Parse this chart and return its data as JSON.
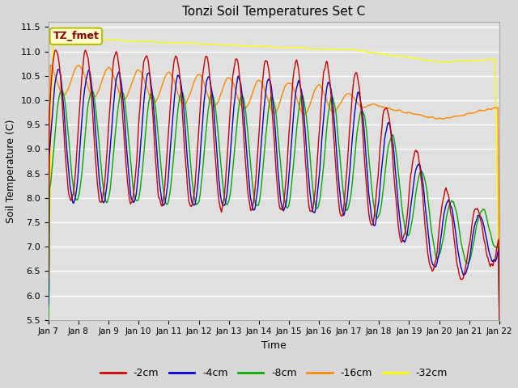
{
  "title": "Tonzi Soil Temperatures Set C",
  "xlabel": "Time",
  "ylabel": "Soil Temperature (C)",
  "ylim": [
    5.5,
    11.6
  ],
  "yticks": [
    5.5,
    6.0,
    6.5,
    7.0,
    7.5,
    8.0,
    8.5,
    9.0,
    9.5,
    10.0,
    10.5,
    11.0,
    11.5
  ],
  "xtick_labels": [
    "Jan 7",
    "Jan 8",
    "Jan 9",
    "Jan 10",
    "Jan 11",
    "Jan 12",
    "Jan 13",
    "Jan 14",
    "Jan 15",
    "Jan 16",
    "Jan 17",
    "Jan 18",
    "Jan 19",
    "Jan 20",
    "Jan 21",
    "Jan 22"
  ],
  "colors": {
    "-2cm": "#cc0000",
    "-4cm": "#0000cc",
    "-8cm": "#00aa00",
    "-16cm": "#ff8800",
    "-32cm": "#ffff00"
  },
  "legend_labels": [
    "-2cm",
    "-4cm",
    "-8cm",
    "-16cm",
    "-32cm"
  ],
  "annotation_text": "TZ_fmet",
  "annotation_bg": "#ffffcc",
  "annotation_border": "#bbbb00",
  "annotation_text_color": "#880000",
  "fig_bg_color": "#d8d8d8",
  "plot_bg_color": "#e0e0e0",
  "grid_color": "#ffffff",
  "figsize": [
    6.4,
    4.8
  ],
  "dpi": 100
}
